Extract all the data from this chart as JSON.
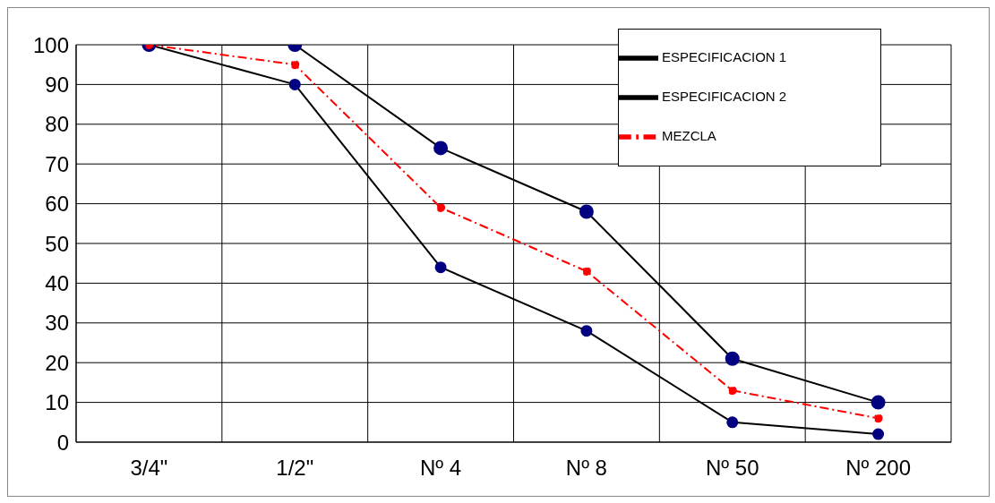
{
  "chart_data": {
    "type": "line",
    "categories": [
      "3/4\"",
      "1/2\"",
      "Nº 4",
      "Nº 8",
      "Nº 50",
      "Nº 200"
    ],
    "series": [
      {
        "name": "ESPECIFICACION 1",
        "color": "#000000",
        "values": [
          100,
          100,
          74,
          58,
          21,
          10
        ],
        "line_style": "solid"
      },
      {
        "name": "ESPECIFICACION 2",
        "color": "#000000",
        "values": [
          100,
          90,
          44,
          28,
          5,
          2
        ],
        "line_style": "solid"
      },
      {
        "name": "MEZCLA",
        "color": "#ff0000",
        "values": [
          100,
          95,
          59,
          43,
          13,
          6
        ],
        "line_style": "dashdot"
      }
    ],
    "ylim": [
      0,
      100
    ],
    "yticks": [
      0,
      10,
      20,
      30,
      40,
      50,
      60,
      70,
      80,
      90,
      100
    ],
    "grid": true,
    "legend": "top right",
    "marker": "circle"
  }
}
